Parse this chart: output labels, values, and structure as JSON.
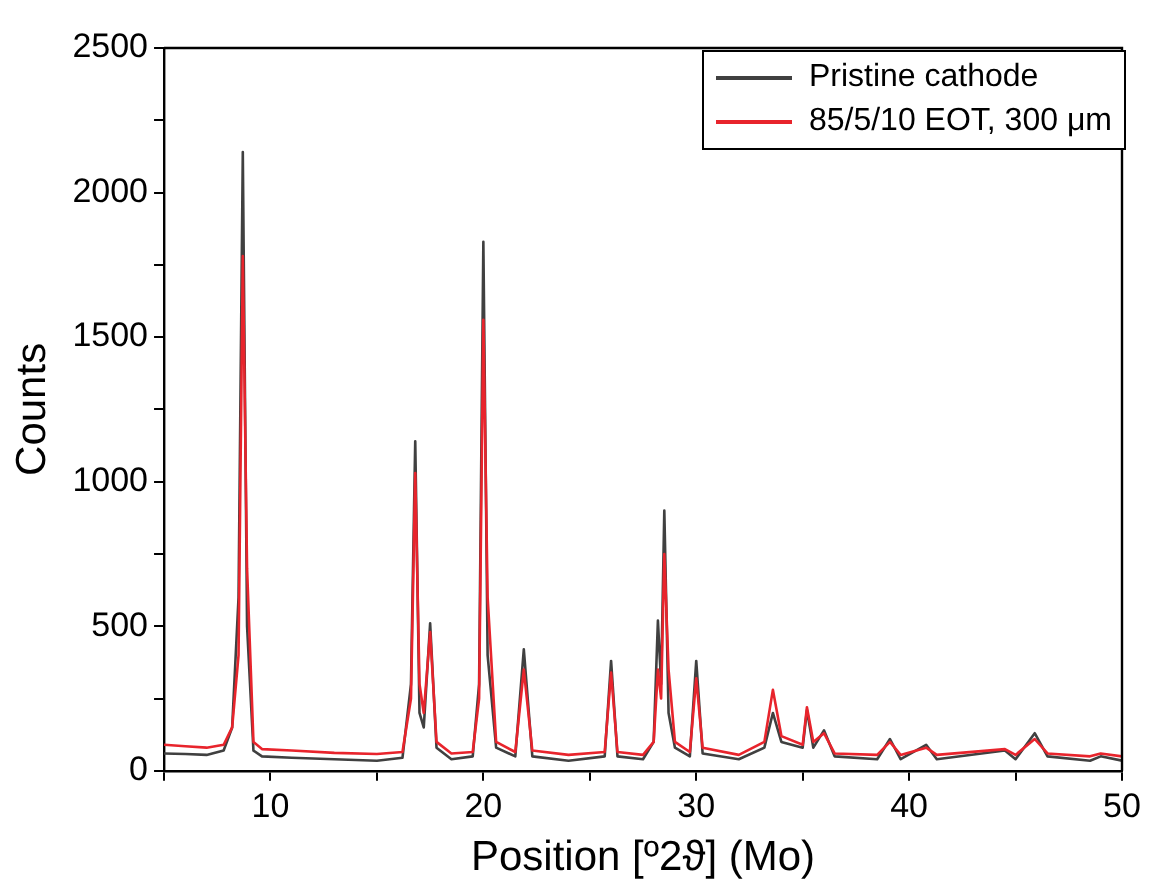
{
  "chart_data": {
    "type": "line",
    "xlabel": "Position [º2ϑ] (Mo)",
    "ylabel": "Counts",
    "x": [
      5,
      6,
      7,
      7.8,
      8.2,
      8.5,
      8.7,
      8.9,
      9.2,
      9.6,
      11,
      13,
      15,
      16.2,
      16.6,
      16.8,
      17.0,
      17.2,
      17.5,
      17.8,
      18.5,
      19.5,
      19.8,
      20.0,
      20.2,
      20.6,
      21.5,
      21.9,
      22.3,
      24,
      25.7,
      26.0,
      26.3,
      27.5,
      28.0,
      28.2,
      28.35,
      28.5,
      28.7,
      29.0,
      29.7,
      30.0,
      30.3,
      32,
      33.2,
      33.6,
      34.0,
      35.0,
      35.2,
      35.5,
      36.0,
      36.5,
      38.5,
      39.1,
      39.6,
      40.8,
      41.3,
      44.5,
      45.0,
      45.9,
      46.5,
      48.5,
      49.0,
      50
    ],
    "series": [
      {
        "name": "Pristine cathode",
        "color": "#404040",
        "values": [
          60,
          58,
          55,
          70,
          150,
          600,
          2140,
          500,
          70,
          50,
          45,
          40,
          35,
          45,
          300,
          1140,
          200,
          150,
          510,
          80,
          40,
          50,
          300,
          1830,
          400,
          80,
          50,
          420,
          50,
          35,
          50,
          380,
          50,
          40,
          100,
          520,
          300,
          900,
          200,
          80,
          50,
          380,
          60,
          40,
          80,
          200,
          100,
          80,
          210,
          80,
          140,
          50,
          40,
          110,
          40,
          90,
          40,
          70,
          40,
          130,
          50,
          35,
          50,
          35
        ]
      },
      {
        "name": "85/5/10 EOT, 300 μm",
        "color": "#e8242c",
        "values": [
          90,
          85,
          80,
          90,
          150,
          400,
          1780,
          700,
          100,
          75,
          70,
          62,
          58,
          65,
          250,
          1030,
          300,
          200,
          480,
          100,
          60,
          65,
          250,
          1560,
          600,
          100,
          65,
          350,
          70,
          55,
          65,
          340,
          65,
          55,
          100,
          350,
          250,
          750,
          350,
          100,
          65,
          320,
          80,
          55,
          100,
          280,
          120,
          90,
          220,
          100,
          130,
          60,
          55,
          100,
          55,
          80,
          55,
          75,
          55,
          110,
          60,
          50,
          60,
          50
        ]
      }
    ],
    "xlim": [
      5,
      50
    ],
    "xticks": [
      {
        "value": 5,
        "label": null
      },
      10,
      {
        "value": 15,
        "label": null
      },
      20,
      {
        "value": 25,
        "label": null
      },
      30,
      {
        "value": 35,
        "label": null
      },
      40,
      {
        "value": 45,
        "label": null
      },
      50
    ],
    "ylim": [
      0,
      2500
    ],
    "yticks": [
      0,
      {
        "value": 250,
        "label": null
      },
      500,
      {
        "value": 750,
        "label": null
      },
      1000,
      {
        "value": 1250,
        "label": null
      },
      1500,
      {
        "value": 1750,
        "label": null
      },
      2000,
      {
        "value": 2250,
        "label": null
      },
      2500
    ],
    "legend": "top right",
    "marker": "none",
    "line_style": "solid",
    "grid": false
  }
}
